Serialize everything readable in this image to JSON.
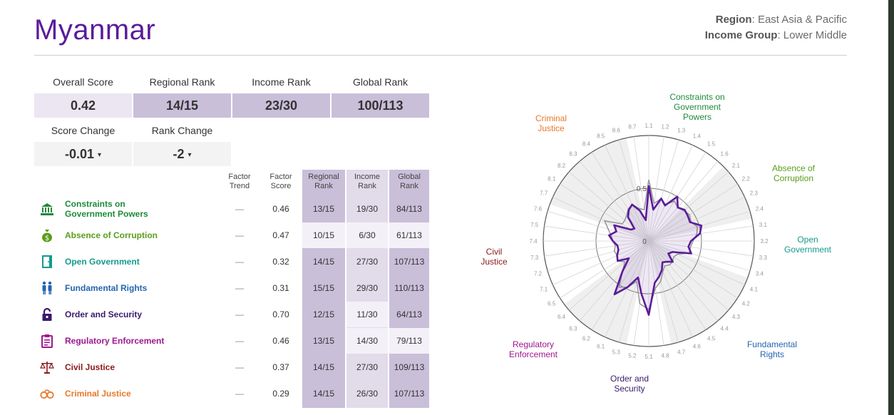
{
  "country": "Myanmar",
  "region_label": "Region",
  "region_value": "East Asia & Pacific",
  "income_label": "Income Group",
  "income_value": "Lower Middle",
  "scores": {
    "overall_label": "Overall Score",
    "overall": "0.42",
    "regional_label": "Regional Rank",
    "regional": "14/15",
    "income_label": "Income Rank",
    "income": "23/30",
    "global_label": "Global Rank",
    "global": "100/113",
    "score_change_label": "Score Change",
    "score_change": "-0.01",
    "rank_change_label": "Rank Change",
    "rank_change": "-2",
    "arrow": "▾"
  },
  "columns": {
    "trend": [
      "Factor",
      "Trend"
    ],
    "score": [
      "Factor",
      "Score"
    ],
    "regional": [
      "Regional",
      "Rank"
    ],
    "income": [
      "Income",
      "Rank"
    ],
    "global": [
      "Global",
      "Rank"
    ]
  },
  "factors": [
    {
      "name1": "Constraints on",
      "name2": "Government Powers",
      "color": "#1e8a3a",
      "icon": "capitol-icon",
      "trend": "—",
      "score": "0.46",
      "regional": "13/15",
      "income": "19/30",
      "global": "84/113"
    },
    {
      "name1": "Absence of Corruption",
      "name2": "",
      "color": "#5a9e1a",
      "icon": "money-bag-icon",
      "trend": "—",
      "score": "0.47",
      "regional": "10/15",
      "income": "6/30",
      "global": "61/113"
    },
    {
      "name1": "Open Government",
      "name2": "",
      "color": "#139b8c",
      "icon": "door-icon",
      "trend": "—",
      "score": "0.32",
      "regional": "14/15",
      "income": "27/30",
      "global": "107/113"
    },
    {
      "name1": "Fundamental Rights",
      "name2": "",
      "color": "#2464b0",
      "icon": "people-icon",
      "trend": "—",
      "score": "0.31",
      "regional": "15/15",
      "income": "29/30",
      "global": "110/113"
    },
    {
      "name1": "Order and Security",
      "name2": "",
      "color": "#3a1a6b",
      "icon": "lock-icon",
      "trend": "—",
      "score": "0.70",
      "regional": "12/15",
      "income": "11/30",
      "global": "64/113"
    },
    {
      "name1": "Regulatory Enforcement",
      "name2": "",
      "color": "#a0178f",
      "icon": "clipboard-icon",
      "trend": "—",
      "score": "0.46",
      "regional": "13/15",
      "income": "14/30",
      "global": "79/113"
    },
    {
      "name1": "Civil Justice",
      "name2": "",
      "color": "#8a1a1a",
      "icon": "scales-icon",
      "trend": "—",
      "score": "0.37",
      "regional": "14/15",
      "income": "27/30",
      "global": "109/113"
    },
    {
      "name1": "Criminal Justice",
      "name2": "",
      "color": "#e8782a",
      "icon": "handcuffs-icon",
      "trend": "—",
      "score": "0.29",
      "regional": "14/15",
      "income": "26/30",
      "global": "107/113"
    }
  ],
  "chart_data": {
    "type": "radar",
    "ring_labels": [
      "0",
      "0.5"
    ],
    "axis_labels": [
      "1.1",
      "1.2",
      "1.3",
      "1.4",
      "1.5",
      "1.6",
      "2.1",
      "2.2",
      "2.3",
      "2.4",
      "3.1",
      "3.2",
      "3.3",
      "3.4",
      "4.1",
      "4.2",
      "4.3",
      "4.4",
      "4.5",
      "4.6",
      "4.7",
      "4.8",
      "5.1",
      "5.2",
      "5.3",
      "6.1",
      "6.2",
      "6.3",
      "6.4",
      "6.5",
      "7.1",
      "7.2",
      "7.3",
      "7.4",
      "7.5",
      "7.6",
      "7.7",
      "8.1",
      "8.2",
      "8.3",
      "8.4",
      "8.5",
      "8.6",
      "8.7"
    ],
    "series": [
      {
        "name": "Myanmar",
        "color": "#5b1b9a",
        "values": [
          0.52,
          0.3,
          0.42,
          0.37,
          0.5,
          0.42,
          0.45,
          0.44,
          0.43,
          0.52,
          0.49,
          0.4,
          0.38,
          0.42,
          0.25,
          0.22,
          0.3,
          0.26,
          0.24,
          0.3,
          0.35,
          0.4,
          0.7,
          0.5,
          0.36,
          0.48,
          0.6,
          0.38,
          0.25,
          0.35,
          0.33,
          0.3,
          0.3,
          0.34,
          0.38,
          0.32,
          0.36,
          0.2,
          0.18,
          0.3,
          0.35,
          0.38,
          0.3,
          0.2
        ]
      },
      {
        "name": "Region",
        "color": "#999999",
        "values": [
          0.58,
          0.36,
          0.42,
          0.38,
          0.45,
          0.42,
          0.44,
          0.46,
          0.44,
          0.48,
          0.46,
          0.42,
          0.4,
          0.4,
          0.3,
          0.28,
          0.3,
          0.3,
          0.28,
          0.32,
          0.4,
          0.45,
          0.65,
          0.6,
          0.4,
          0.48,
          0.52,
          0.38,
          0.3,
          0.35,
          0.33,
          0.34,
          0.32,
          0.34,
          0.36,
          0.4,
          0.46,
          0.3,
          0.3,
          0.32,
          0.36,
          0.38,
          0.32,
          0.3
        ]
      }
    ],
    "factor_groups": [
      {
        "label1": "Constraints on",
        "label2": "Government",
        "label3": "Powers",
        "color": "#1e8a3a"
      },
      {
        "label1": "Absence of",
        "label2": "Corruption",
        "label3": "",
        "color": "#5a9e1a"
      },
      {
        "label1": "Open",
        "label2": "Government",
        "label3": "",
        "color": "#139b8c"
      },
      {
        "label1": "Fundamental",
        "label2": "Rights",
        "label3": "",
        "color": "#2464b0"
      },
      {
        "label1": "Order and",
        "label2": "Security",
        "label3": "",
        "color": "#3a1a6b"
      },
      {
        "label1": "Regulatory",
        "label2": "Enforcement",
        "label3": "",
        "color": "#a0178f"
      },
      {
        "label1": "Civil",
        "label2": "Justice",
        "label3": "",
        "color": "#8a1a1a"
      },
      {
        "label1": "Criminal",
        "label2": "Justice",
        "label3": "",
        "color": "#e8782a"
      }
    ]
  }
}
